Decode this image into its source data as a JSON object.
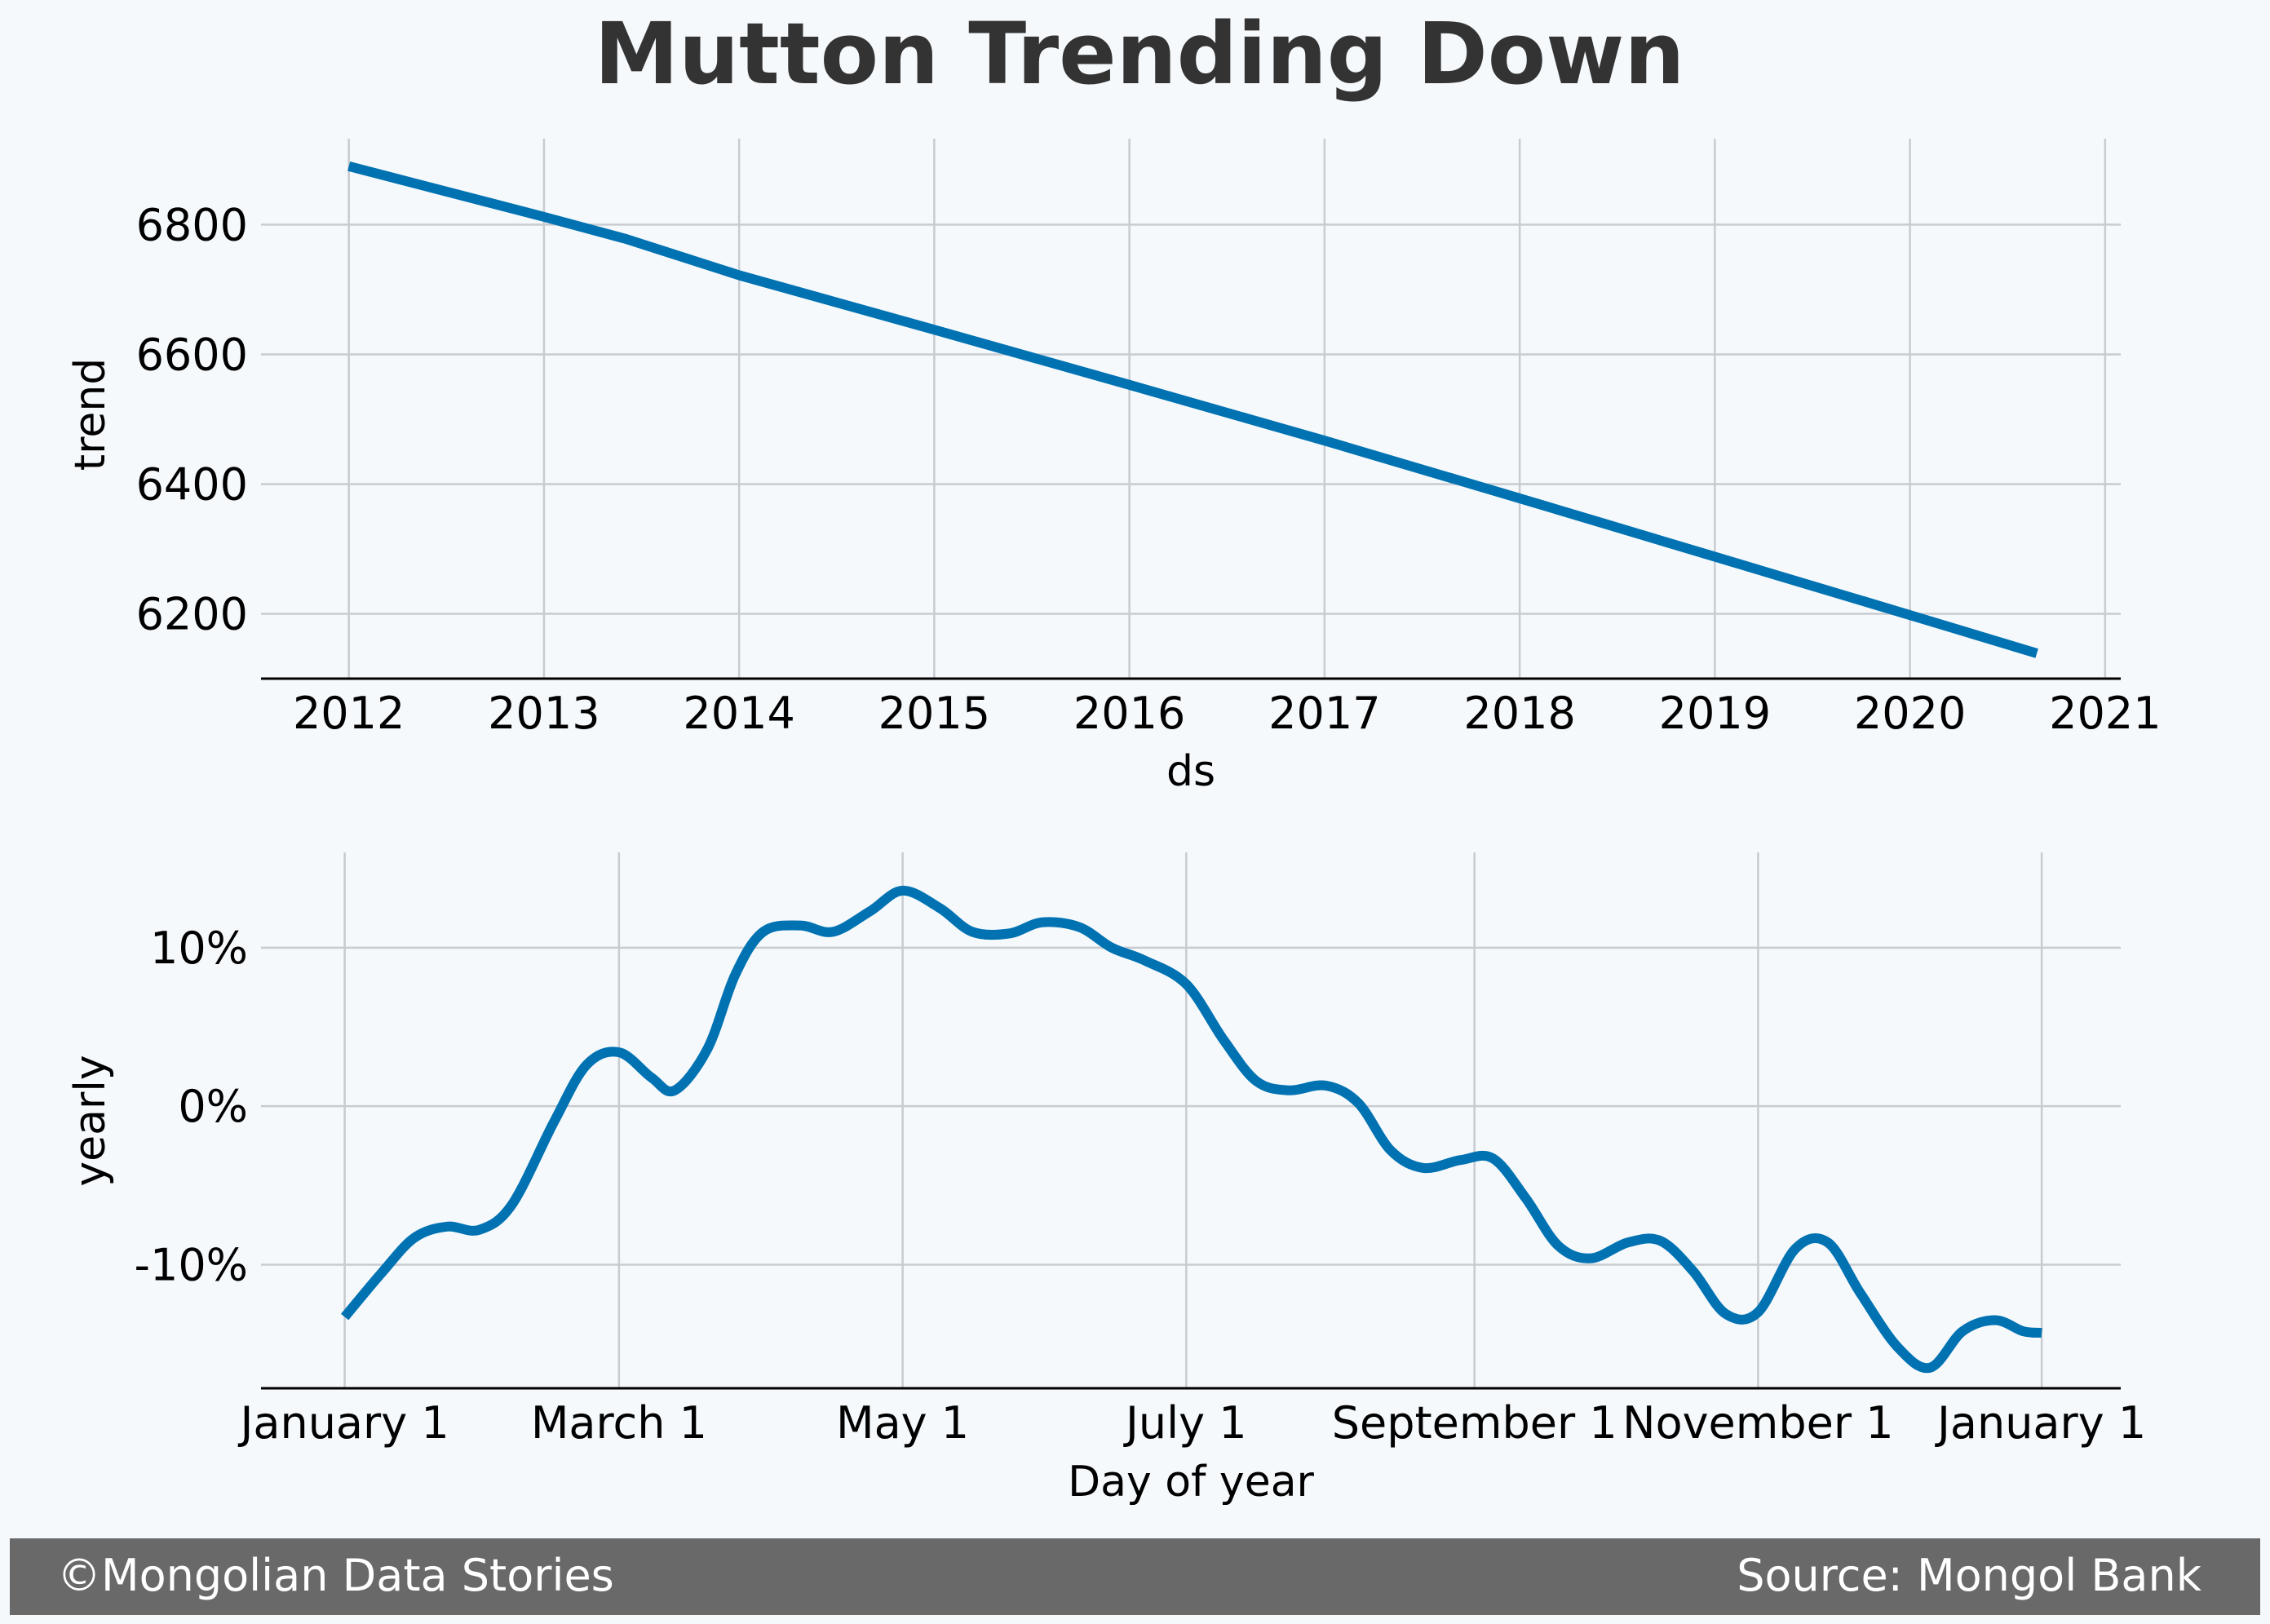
{
  "title": "Mutton Trending Down",
  "footer": {
    "copyright": "©Mongolian Data Stories",
    "source": "Source: Mongol Bank"
  },
  "colors": {
    "background": "#f5f9fc",
    "line": "#0072b2",
    "grid": "#c8ccd0",
    "footer_bg": "#696969",
    "title": "#333333"
  },
  "chart_data": [
    {
      "type": "line",
      "xlabel": "ds",
      "ylabel": "trend",
      "x_ticks": [
        "2012",
        "2013",
        "2014",
        "2015",
        "2016",
        "2017",
        "2018",
        "2019",
        "2020",
        "2021"
      ],
      "y_ticks": [
        "6200",
        "6400",
        "6600",
        "6800"
      ],
      "xlim": [
        2011.55,
        2021.08
      ],
      "ylim": [
        6100,
        6920
      ],
      "grid": true,
      "series": [
        {
          "x": [
            2012.0,
            2013.0,
            2013.42,
            2014.0,
            2015.0,
            2016.0,
            2017.0,
            2018.0,
            2019.0,
            2020.0,
            2020.65
          ],
          "y": [
            6890,
            6812,
            6778,
            6722,
            6638,
            6553,
            6467,
            6378,
            6288,
            6198,
            6139
          ]
        }
      ]
    },
    {
      "type": "line",
      "xlabel": "Day of year",
      "ylabel": "yearly",
      "x_ticks": [
        "January 1",
        "March 1",
        "May 1",
        "July 1",
        "September 1",
        "November 1",
        "January 1"
      ],
      "y_ticks": [
        "-10%",
        "0%",
        "10%"
      ],
      "xlim": [
        -18,
        382
      ],
      "ylim": [
        -17.8,
        15.5
      ],
      "grid": true,
      "series": [
        {
          "x": [
            0,
            8,
            15,
            22,
            29,
            36,
            45,
            52,
            59,
            66,
            71,
            78,
            84,
            90,
            98,
            105,
            113,
            120,
            128,
            135,
            143,
            150,
            158,
            165,
            172,
            181,
            189,
            196,
            203,
            211,
            218,
            225,
            232,
            240,
            247,
            254,
            261,
            268,
            276,
            283,
            290,
            297,
            304,
            312,
            319,
            326,
            334,
            341,
            348,
            355,
            361,
            365
          ],
          "y": [
            -13.3,
            -10.5,
            -8.3,
            -7.6,
            -7.8,
            -6.2,
            -1.0,
            2.6,
            3.4,
            1.8,
            1.0,
            3.6,
            8.3,
            11.0,
            11.4,
            11.0,
            12.3,
            13.6,
            12.5,
            11.0,
            10.9,
            11.6,
            11.3,
            10.0,
            9.2,
            7.7,
            4.2,
            1.6,
            1.0,
            1.3,
            0.2,
            -2.8,
            -3.9,
            -3.4,
            -3.3,
            -5.8,
            -8.8,
            -9.6,
            -8.6,
            -8.5,
            -10.4,
            -13.1,
            -13.0,
            -9.0,
            -8.6,
            -11.8,
            -15.2,
            -16.5,
            -14.2,
            -13.5,
            -14.2,
            -14.3
          ]
        }
      ]
    }
  ]
}
